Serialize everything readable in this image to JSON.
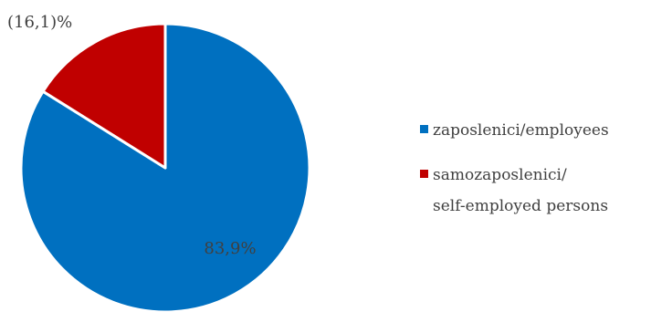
{
  "chart_data": {
    "type": "pie",
    "title": "",
    "slices": [
      {
        "label": "zaposlenici/employees",
        "legend_lines": [
          "zaposlenici/employees"
        ],
        "value": 83.9,
        "data_label": "83,9%",
        "color": "#0070C0"
      },
      {
        "label": "samozaposlenici/ self-employed persons",
        "legend_lines": [
          "samozaposlenici/",
          "self-employed persons"
        ],
        "value": 16.1,
        "data_label": "(16,1)%",
        "color": "#C00000"
      }
    ],
    "start_angle": "12 o'clock",
    "direction": "clockwise",
    "legend_position": "right",
    "label_color": "#404040",
    "slice_border_color": "#ffffff"
  }
}
